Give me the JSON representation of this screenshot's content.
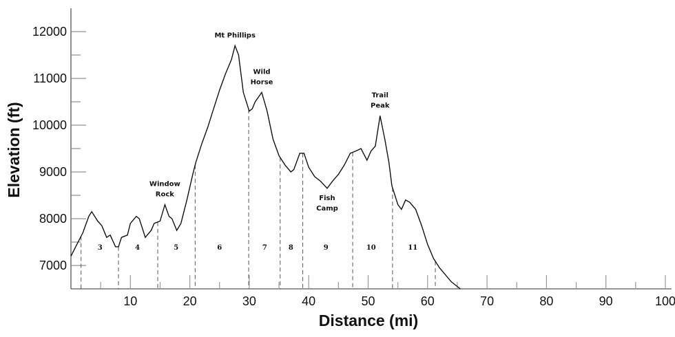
{
  "chart_data": {
    "type": "line",
    "title": "",
    "xlabel": "Distance (mi)",
    "ylabel": "Elevation (ft)",
    "xlim": [
      0,
      100
    ],
    "ylim": [
      6500,
      12500
    ],
    "x_ticks": [
      10,
      20,
      30,
      40,
      50,
      60,
      70,
      80,
      90,
      100
    ],
    "y_ticks": [
      7000,
      8000,
      9000,
      10000,
      11000,
      12000
    ],
    "grid": false,
    "line_color": "#111111",
    "series": [
      {
        "x": [
          0,
          1,
          2,
          3,
          3.5,
          4.5,
          5.2,
          6,
          6.6,
          7.5,
          8,
          8.5,
          9.5,
          10,
          11,
          11.5,
          12,
          12.5,
          13.5,
          14,
          15,
          15.8,
          16.5,
          17,
          17.8,
          18.5,
          19.5,
          20.5,
          21,
          22,
          23,
          24,
          25,
          26,
          27,
          27.6,
          28.2,
          29,
          30,
          30.5,
          31,
          32.1,
          33,
          34,
          35,
          36,
          37,
          37.5,
          38.5,
          39.2,
          40,
          41,
          42,
          43.1,
          44,
          45,
          46,
          47,
          48,
          48.8,
          49.8,
          50.5,
          51.2,
          52,
          52.8,
          53.5,
          54,
          55,
          55.6,
          56.3,
          57,
          58,
          59,
          60,
          61,
          62,
          63,
          64,
          65.5
        ],
        "y": [
          7200,
          7450,
          7700,
          8050,
          8150,
          7950,
          7850,
          7600,
          7650,
          7400,
          7400,
          7600,
          7650,
          7900,
          8050,
          8000,
          7800,
          7600,
          7750,
          7900,
          7950,
          8300,
          8050,
          8000,
          7750,
          7900,
          8400,
          8950,
          9200,
          9600,
          9950,
          10350,
          10750,
          11100,
          11400,
          11700,
          11500,
          10700,
          10300,
          10350,
          10500,
          10700,
          10300,
          9700,
          9350,
          9150,
          9000,
          9050,
          9400,
          9400,
          9100,
          8900,
          8800,
          8650,
          8800,
          8950,
          9150,
          9400,
          9450,
          9500,
          9250,
          9450,
          9550,
          10200,
          9700,
          9200,
          8700,
          8300,
          8200,
          8400,
          8350,
          8200,
          7850,
          7450,
          7150,
          6950,
          6800,
          6650,
          6500
        ]
      }
    ],
    "segment_dividers": [
      1.7,
      8.0,
      14.6,
      20.9,
      29.9,
      35.2,
      39.0,
      47.4,
      54.1,
      61.3
    ],
    "segments": [
      {
        "label": "3",
        "x": 4.9
      },
      {
        "label": "4",
        "x": 11.2
      },
      {
        "label": "5",
        "x": 17.7
      },
      {
        "label": "6",
        "x": 25.0
      },
      {
        "label": "7",
        "x": 32.6
      },
      {
        "label": "8",
        "x": 37.0
      },
      {
        "label": "9",
        "x": 42.9
      },
      {
        "label": "10",
        "x": 50.5
      },
      {
        "label": "11",
        "x": 57.5
      }
    ],
    "annotations": [
      {
        "lines": [
          "Window",
          "Rock"
        ],
        "x": 15.8,
        "y": 8300
      },
      {
        "lines": [
          "Mt  Phillips"
        ],
        "x": 27.6,
        "y": 11700
      },
      {
        "lines": [
          "Wild",
          "Horse"
        ],
        "x": 32.1,
        "y": 10700
      },
      {
        "lines": [
          "Fish",
          "Camp"
        ],
        "x": 43.1,
        "y": 8650,
        "position": "below"
      },
      {
        "lines": [
          "Trail",
          "Peak"
        ],
        "x": 52,
        "y": 10200
      }
    ]
  }
}
